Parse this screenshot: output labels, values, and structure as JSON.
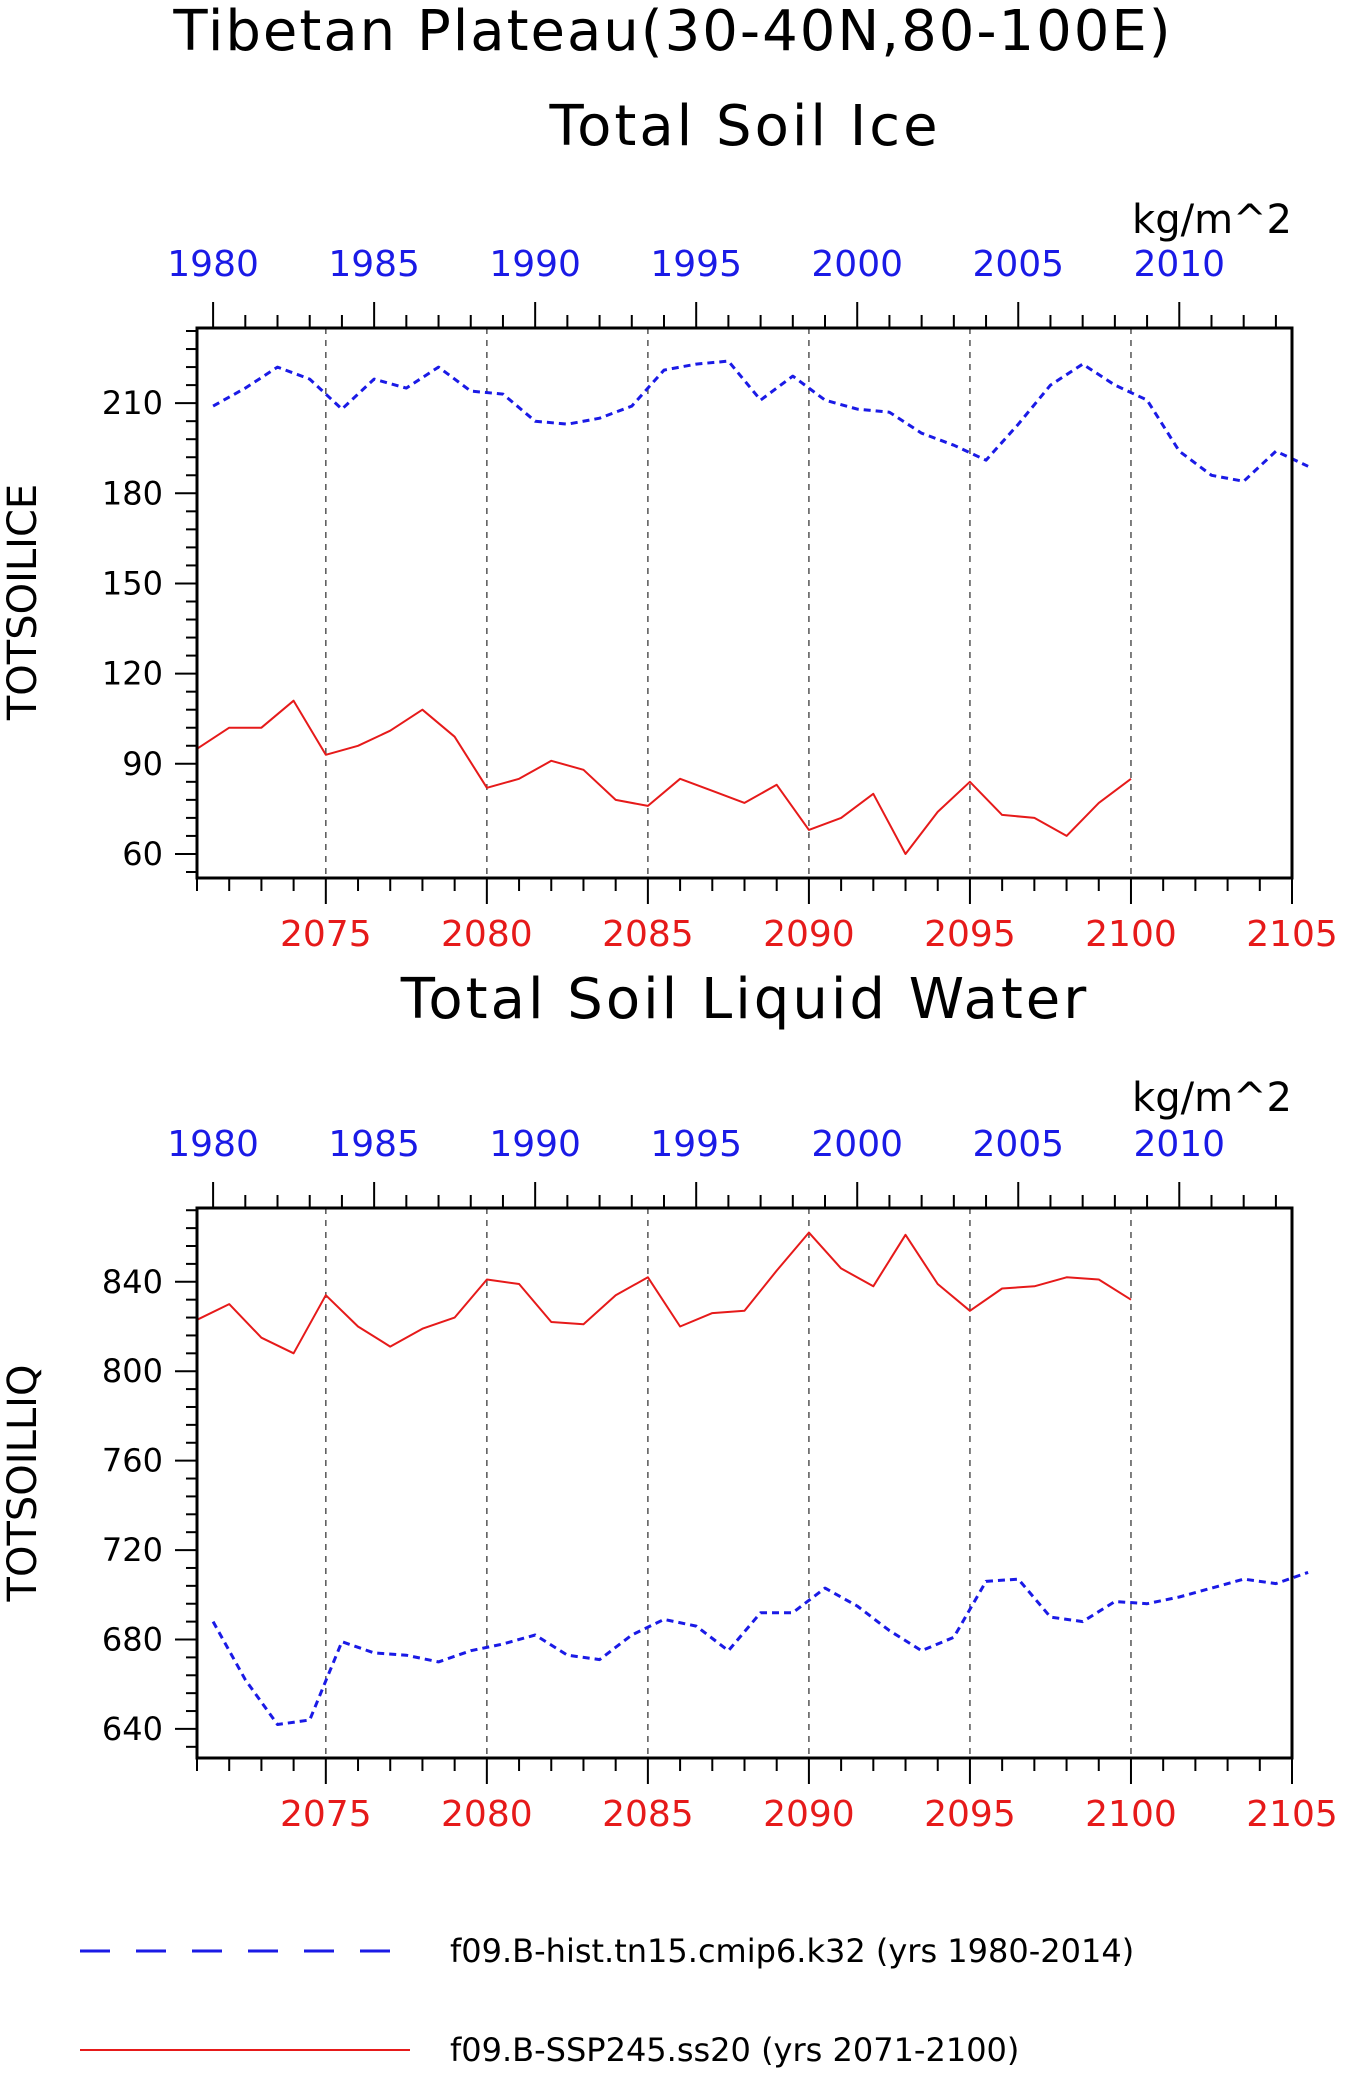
{
  "title": "Tibetan Plateau(30-40N,80-100E)",
  "colors": {
    "hist": "#1a1ae6",
    "ssp": "#e61a1a",
    "axis": "#000000"
  },
  "legend": [
    {
      "label": "f09.B-hist.tn15.cmip6.k32 (yrs 1980-2014)",
      "color": "#1a1ae6",
      "style": "dashed"
    },
    {
      "label": "f09.B-SSP245.ss20 (yrs 2071-2100)",
      "color": "#e61a1a",
      "style": "solid"
    }
  ],
  "chart_data": [
    {
      "type": "line",
      "title": "Total Soil Ice",
      "units": "kg/m^2",
      "ylabel": "TOTSOILICE",
      "ylim": [
        52,
        235
      ],
      "yticks": [
        60,
        90,
        120,
        150,
        180,
        210
      ],
      "top_x": {
        "label_ticks": [
          1980,
          1985,
          1990,
          1995,
          2000,
          2005,
          2010
        ],
        "range": [
          1979.5,
          2013.5
        ],
        "color": "#1a1ae6"
      },
      "bottom_x": {
        "label_ticks": [
          2075,
          2080,
          2085,
          2090,
          2095,
          2100,
          2105
        ],
        "range": [
          2071,
          2105
        ],
        "color": "#e61a1a"
      },
      "grid": "dashed vertical lines at bottom-axis labeled years",
      "series": [
        {
          "name": "f09.B-hist.tn15.cmip6.k32 (yrs 1980-2014)",
          "axis": "top",
          "style": "dashed",
          "x": [
            1980,
            1981,
            1982,
            1983,
            1984,
            1985,
            1986,
            1987,
            1988,
            1989,
            1990,
            1991,
            1992,
            1993,
            1994,
            1995,
            1996,
            1997,
            1998,
            1999,
            2000,
            2001,
            2002,
            2003,
            2004,
            2005,
            2006,
            2007,
            2008,
            2009,
            2010,
            2011,
            2012,
            2013,
            2014
          ],
          "values": [
            209,
            215,
            222,
            218,
            208,
            218,
            215,
            222,
            214,
            213,
            204,
            203,
            205,
            209,
            221,
            223,
            224,
            211,
            219,
            211,
            208,
            207,
            200,
            196,
            191,
            203,
            216,
            223,
            216,
            211,
            194,
            186,
            184,
            194,
            189
          ]
        },
        {
          "name": "f09.B-SSP245.ss20 (yrs 2071-2100)",
          "axis": "bottom",
          "style": "solid",
          "x": [
            2071,
            2072,
            2073,
            2074,
            2075,
            2076,
            2077,
            2078,
            2079,
            2080,
            2081,
            2082,
            2083,
            2084,
            2085,
            2086,
            2087,
            2088,
            2089,
            2090,
            2091,
            2092,
            2093,
            2094,
            2095,
            2096,
            2097,
            2098,
            2099,
            2100
          ],
          "values": [
            95,
            102,
            102,
            111,
            93,
            96,
            101,
            108,
            99,
            82,
            85,
            91,
            88,
            78,
            76,
            85,
            81,
            77,
            83,
            68,
            72,
            80,
            60,
            74,
            84,
            73,
            72,
            66,
            77,
            85
          ]
        }
      ]
    },
    {
      "type": "line",
      "title": "Total Soil Liquid Water",
      "units": "kg/m^2",
      "ylabel": "TOTSOILLIQ",
      "ylim": [
        627,
        873
      ],
      "yticks": [
        640,
        680,
        720,
        760,
        800,
        840
      ],
      "top_x": {
        "label_ticks": [
          1980,
          1985,
          1990,
          1995,
          2000,
          2005,
          2010
        ],
        "range": [
          1979.5,
          2013.5
        ],
        "color": "#1a1ae6"
      },
      "bottom_x": {
        "label_ticks": [
          2075,
          2080,
          2085,
          2090,
          2095,
          2100,
          2105
        ],
        "range": [
          2071,
          2105
        ],
        "color": "#e61a1a"
      },
      "grid": "dashed vertical lines at bottom-axis labeled years",
      "series": [
        {
          "name": "f09.B-hist.tn15.cmip6.k32 (yrs 1980-2014)",
          "axis": "top",
          "style": "dashed",
          "x": [
            1980,
            1981,
            1982,
            1983,
            1984,
            1985,
            1986,
            1987,
            1988,
            1989,
            1990,
            1991,
            1992,
            1993,
            1994,
            1995,
            1996,
            1997,
            1998,
            1999,
            2000,
            2001,
            2002,
            2003,
            2004,
            2005,
            2006,
            2007,
            2008,
            2009,
            2010,
            2011,
            2012,
            2013,
            2014
          ],
          "values": [
            688,
            662,
            642,
            644,
            679,
            674,
            673,
            670,
            675,
            678,
            682,
            673,
            671,
            682,
            689,
            686,
            675,
            692,
            692,
            703,
            695,
            684,
            675,
            681,
            706,
            707,
            690,
            688,
            697,
            696,
            699,
            703,
            707,
            705,
            710
          ]
        },
        {
          "name": "f09.B-SSP245.ss20 (yrs 2071-2100)",
          "axis": "bottom",
          "style": "solid",
          "x": [
            2071,
            2072,
            2073,
            2074,
            2075,
            2076,
            2077,
            2078,
            2079,
            2080,
            2081,
            2082,
            2083,
            2084,
            2085,
            2086,
            2087,
            2088,
            2089,
            2090,
            2091,
            2092,
            2093,
            2094,
            2095,
            2096,
            2097,
            2098,
            2099,
            2100
          ],
          "values": [
            823,
            830,
            815,
            808,
            834,
            820,
            811,
            819,
            824,
            841,
            839,
            822,
            821,
            834,
            842,
            820,
            826,
            827,
            845,
            862,
            846,
            838,
            861,
            839,
            827,
            837,
            838,
            842,
            841,
            832
          ]
        }
      ]
    }
  ]
}
